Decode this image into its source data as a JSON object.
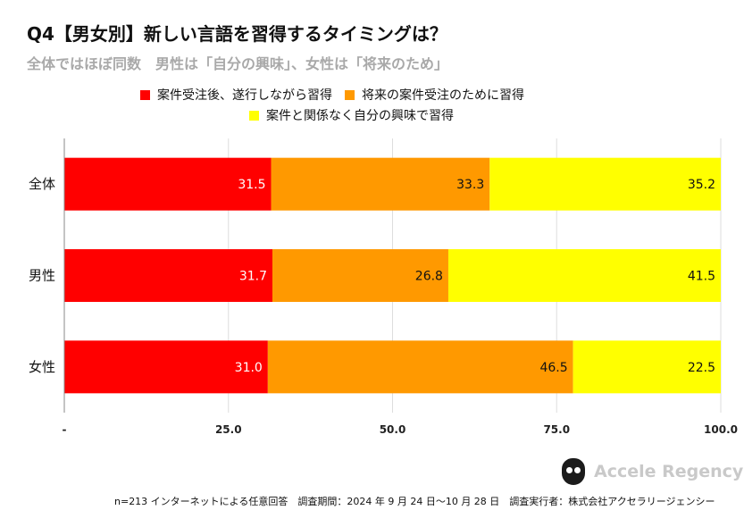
{
  "header": {
    "title": "Q4【男女別】新しい言語を習得するタイミングは？",
    "subtitle": "全体ではほぼ同数　男性は「自分の興味」、女性は「将来のため」"
  },
  "legend": [
    {
      "label": "案件受注後、遂行しながら習得",
      "color": "#ff0000"
    },
    {
      "label": "将来の案件受注のために習得",
      "color": "#ff9900"
    },
    {
      "label": "案件と関係なく自分の興味で習得",
      "color": "#ffff00"
    }
  ],
  "chart_data": {
    "type": "bar",
    "orientation": "horizontal",
    "stacked": true,
    "categories": [
      "全体",
      "男性",
      "女性"
    ],
    "series": [
      {
        "name": "案件受注後、遂行しながら習得",
        "color": "#ff0000",
        "values": [
          31.5,
          31.7,
          31.0
        ],
        "label_color": "#ffffff"
      },
      {
        "name": "将来の案件受注のために習得",
        "color": "#ff9900",
        "values": [
          33.3,
          26.8,
          46.5
        ],
        "label_color": "#111111"
      },
      {
        "name": "案件と関係なく自分の興味で習得",
        "color": "#ffff00",
        "values": [
          35.2,
          41.5,
          22.5
        ],
        "label_color": "#111111"
      }
    ],
    "xlim": [
      0,
      100
    ],
    "ticks": [
      {
        "value": 0,
        "label": "-"
      },
      {
        "value": 25,
        "label": "25.0"
      },
      {
        "value": 50,
        "label": "50.0"
      },
      {
        "value": 75,
        "label": "75.0"
      },
      {
        "value": 100,
        "label": "100.0"
      }
    ]
  },
  "brand": {
    "name": "Accele Regency"
  },
  "footnote": "n=213 インターネットによる任意回答　調査期間：2024 年 9 月 24 日～10 月 28 日　調査実行者：株式会社アクセラリージェンシー"
}
